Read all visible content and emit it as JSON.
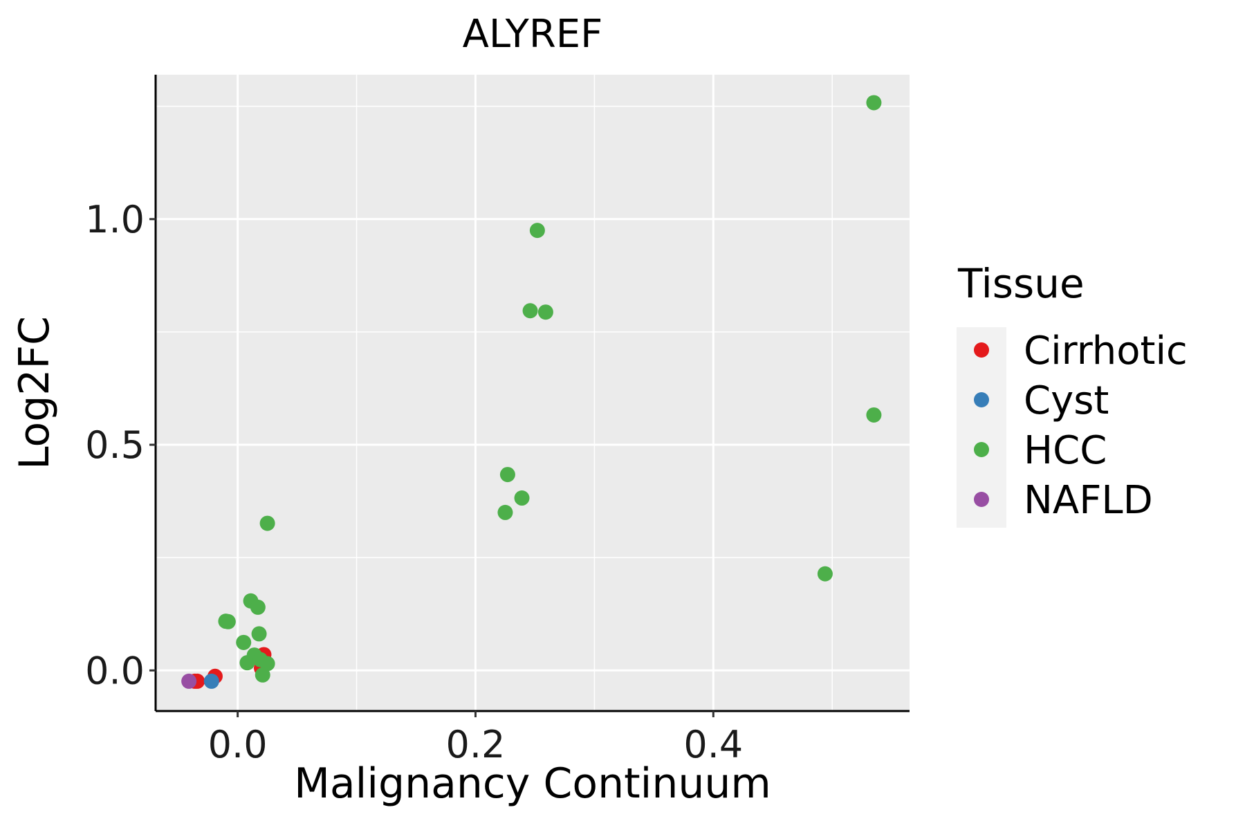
{
  "chart_data": {
    "type": "scatter",
    "title": "ALYREF",
    "xlabel": "Malignancy Continuum",
    "ylabel": "Log2FC",
    "xlim": [
      -0.069,
      0.565
    ],
    "ylim": [
      -0.09,
      1.32
    ],
    "x_ticks": [
      0.0,
      0.2,
      0.4
    ],
    "x_tick_labels": [
      "0.0",
      "0.2",
      "0.4"
    ],
    "y_ticks": [
      0.0,
      0.5,
      1.0
    ],
    "y_tick_labels": [
      "0.0",
      "0.5",
      "1.0"
    ],
    "grid": true,
    "legend_title": "Tissue",
    "legend_position": "right",
    "series": [
      {
        "name": "Cirrhotic",
        "color": "#E41A1C",
        "points": [
          {
            "x": -0.034,
            "y": -0.024
          },
          {
            "x": -0.036,
            "y": -0.024
          },
          {
            "x": -0.019,
            "y": -0.013
          },
          {
            "x": 0.022,
            "y": 0.035
          },
          {
            "x": 0.02,
            "y": 0.005
          }
        ]
      },
      {
        "name": "Cyst",
        "color": "#377EB8",
        "points": [
          {
            "x": -0.022,
            "y": -0.024
          }
        ]
      },
      {
        "name": "HCC",
        "color": "#4DAF4A",
        "points": [
          {
            "x": 0.535,
            "y": 1.258
          },
          {
            "x": 0.252,
            "y": 0.975
          },
          {
            "x": 0.246,
            "y": 0.797
          },
          {
            "x": 0.259,
            "y": 0.794
          },
          {
            "x": 0.535,
            "y": 0.566
          },
          {
            "x": 0.227,
            "y": 0.434
          },
          {
            "x": 0.239,
            "y": 0.382
          },
          {
            "x": 0.225,
            "y": 0.35
          },
          {
            "x": 0.025,
            "y": 0.326
          },
          {
            "x": 0.494,
            "y": 0.214
          },
          {
            "x": 0.011,
            "y": 0.154
          },
          {
            "x": 0.017,
            "y": 0.14
          },
          {
            "x": -0.01,
            "y": 0.109
          },
          {
            "x": -0.008,
            "y": 0.108
          },
          {
            "x": 0.018,
            "y": 0.081
          },
          {
            "x": 0.005,
            "y": 0.062
          },
          {
            "x": 0.014,
            "y": 0.034
          },
          {
            "x": 0.008,
            "y": 0.017
          },
          {
            "x": 0.019,
            "y": 0.024
          },
          {
            "x": 0.025,
            "y": 0.015
          },
          {
            "x": 0.021,
            "y": -0.01
          }
        ]
      },
      {
        "name": "NAFLD",
        "color": "#984EA3",
        "points": [
          {
            "x": -0.041,
            "y": -0.024
          }
        ]
      }
    ]
  }
}
